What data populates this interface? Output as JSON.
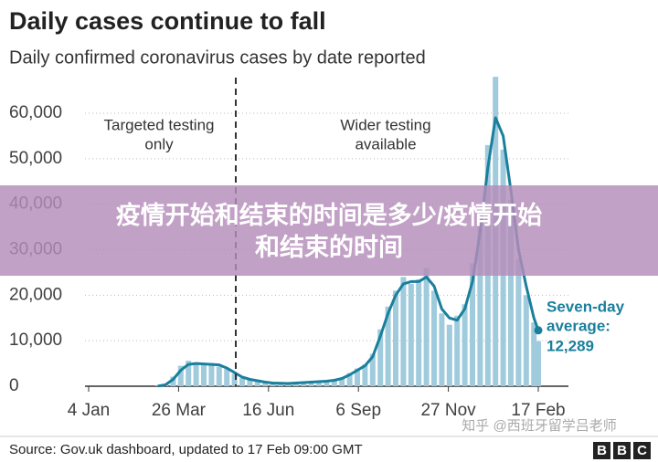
{
  "chart_data": {
    "type": "bar",
    "title": "Daily cases continue to fall",
    "subtitle": "Daily confirmed coronavirus cases by date reported",
    "x": [
      63,
      70,
      77,
      84,
      91,
      98,
      105,
      112,
      119,
      126,
      133,
      140,
      147,
      154,
      161,
      168,
      175,
      182,
      189,
      196,
      203,
      210,
      217,
      224,
      231,
      238,
      245,
      252,
      259,
      266,
      273,
      280,
      287,
      294,
      301,
      308,
      315,
      322,
      329,
      336,
      343,
      350,
      357,
      364,
      371,
      378,
      385,
      392,
      399,
      406,
      410
    ],
    "series": [
      {
        "type": "bar",
        "color": "#9fcbdc",
        "values": [
          80,
          450,
          2100,
          4500,
          5600,
          5200,
          4600,
          5100,
          4300,
          3800,
          2700,
          1800,
          1400,
          1100,
          800,
          650,
          700,
          550,
          750,
          850,
          1000,
          1050,
          1200,
          1400,
          1900,
          2900,
          3900,
          4800,
          7100,
          12500,
          17500,
          21000,
          24000,
          22500,
          23500,
          26000,
          21000,
          16000,
          13500,
          15500,
          18000,
          27000,
          38000,
          53000,
          68000,
          52000,
          41000,
          28000,
          20000,
          14000,
          9900
        ]
      },
      {
        "type": "line",
        "color": "#1a7f9c",
        "values": [
          50,
          300,
          1500,
          3500,
          4800,
          5000,
          4900,
          4800,
          4700,
          4000,
          3000,
          2000,
          1500,
          1200,
          900,
          700,
          650,
          600,
          700,
          800,
          900,
          1000,
          1100,
          1300,
          1700,
          2500,
          3500,
          4500,
          6500,
          11000,
          16000,
          20000,
          22500,
          23000,
          23000,
          24000,
          22000,
          17000,
          15000,
          14500,
          17000,
          23000,
          34000,
          48000,
          59000,
          55000,
          43000,
          30000,
          22000,
          15000,
          12289
        ],
        "value_labels": [
          null,
          null,
          null,
          null,
          null,
          null,
          null,
          null,
          null,
          null,
          null,
          null,
          null,
          null,
          null,
          null,
          null,
          null,
          null,
          null,
          null,
          null,
          null,
          null,
          null,
          null,
          null,
          null,
          null,
          null,
          null,
          null,
          null,
          null,
          null,
          null,
          null,
          null,
          null,
          null,
          null,
          null,
          null,
          null,
          null,
          null,
          null,
          null,
          null,
          null,
          "12,289"
        ]
      }
    ],
    "xlim": [
      0,
      410
    ],
    "xticks": [
      {
        "value": 0,
        "label": "4 Jan"
      },
      {
        "value": 82,
        "label": "26 Mar"
      },
      {
        "value": 164,
        "label": "16 Jun"
      },
      {
        "value": 246,
        "label": "6 Sep"
      },
      {
        "value": 328,
        "label": "27 Nov"
      },
      {
        "value": 410,
        "label": "17 Feb"
      }
    ],
    "ylim": [
      0,
      68000
    ],
    "yticks": [
      0,
      {
        "value": 10000,
        "label": "10,000"
      },
      {
        "value": 20000,
        "label": "20,000"
      },
      {
        "value": 30000,
        "label": "30,000"
      },
      {
        "value": 40000,
        "label": "40,000"
      },
      {
        "value": 50000,
        "label": "50,000"
      },
      {
        "value": 60000,
        "label": "60,000"
      }
    ],
    "grid": true,
    "annotations": [
      "Targeted testing",
      "only",
      "Wider testing",
      "available",
      "Seven-day",
      "average:"
    ],
    "source": "Source: Gov.uk dashboard, updated to 17 Feb 09:00 GMT"
  },
  "logo": [
    "B",
    "B",
    "C"
  ],
  "watermark": "知乎 @西班牙留学吕老师",
  "banner": [
    "疫情开始和结束的时间是多少/疫情开始",
    "和结束的时间"
  ]
}
